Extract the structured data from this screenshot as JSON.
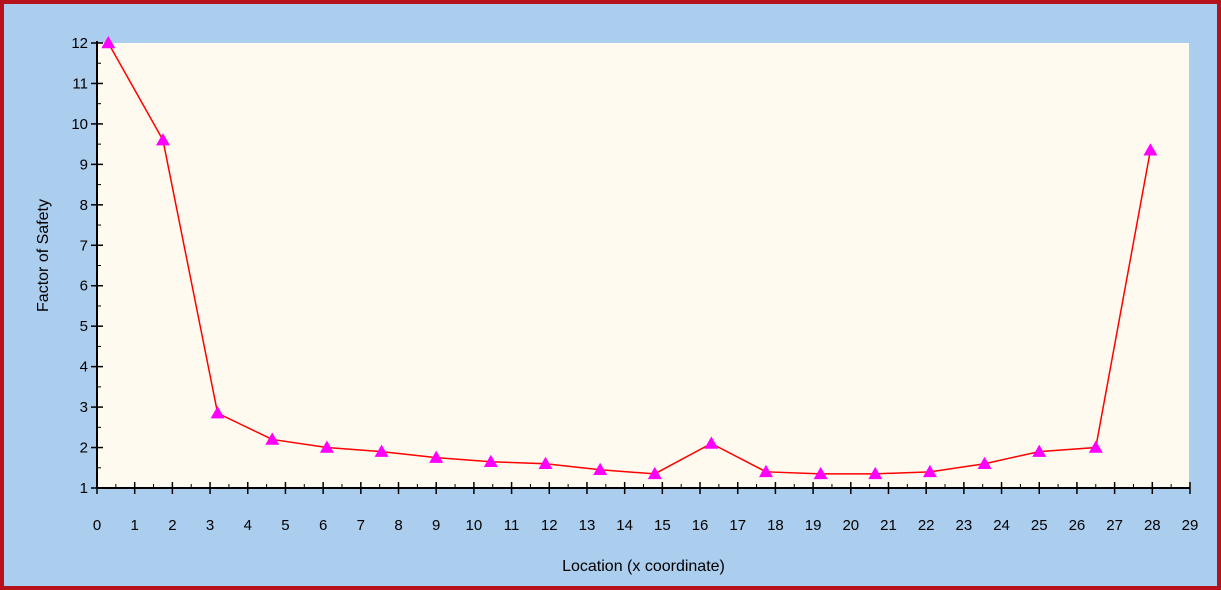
{
  "chart_data": {
    "type": "line",
    "title": "",
    "xlabel": "Location (x coordinate)",
    "ylabel": "Factor of Safety",
    "xlim": [
      0,
      29
    ],
    "ylim": [
      1,
      12
    ],
    "x_ticks": [
      0,
      1,
      2,
      3,
      4,
      5,
      6,
      7,
      8,
      9,
      10,
      11,
      12,
      13,
      14,
      15,
      16,
      17,
      18,
      19,
      20,
      21,
      22,
      23,
      24,
      25,
      26,
      27,
      28,
      29
    ],
    "y_ticks": [
      1,
      2,
      3,
      4,
      5,
      6,
      7,
      8,
      9,
      10,
      11,
      12
    ],
    "grid": false,
    "legend": "none",
    "series": [
      {
        "x": [
          0.3,
          1.75,
          3.2,
          4.65,
          6.1,
          7.55,
          9.0,
          10.45,
          11.9,
          13.35,
          14.8,
          16.3,
          17.75,
          19.2,
          20.65,
          22.1,
          23.55,
          25.0,
          26.5,
          27.95
        ],
        "y": [
          12.0,
          9.6,
          2.85,
          2.2,
          2.0,
          1.9,
          1.75,
          1.65,
          1.6,
          1.45,
          1.35,
          2.1,
          1.4,
          1.35,
          1.35,
          1.4,
          1.6,
          1.9,
          2.0,
          9.35
        ],
        "line_color": "#ff0000",
        "marker": "triangle",
        "marker_color": "#ff00ff"
      }
    ]
  },
  "colors": {
    "frame_border": "#b5121b",
    "frame_background": "#abcdee",
    "plot_background": "#fffaf0"
  }
}
